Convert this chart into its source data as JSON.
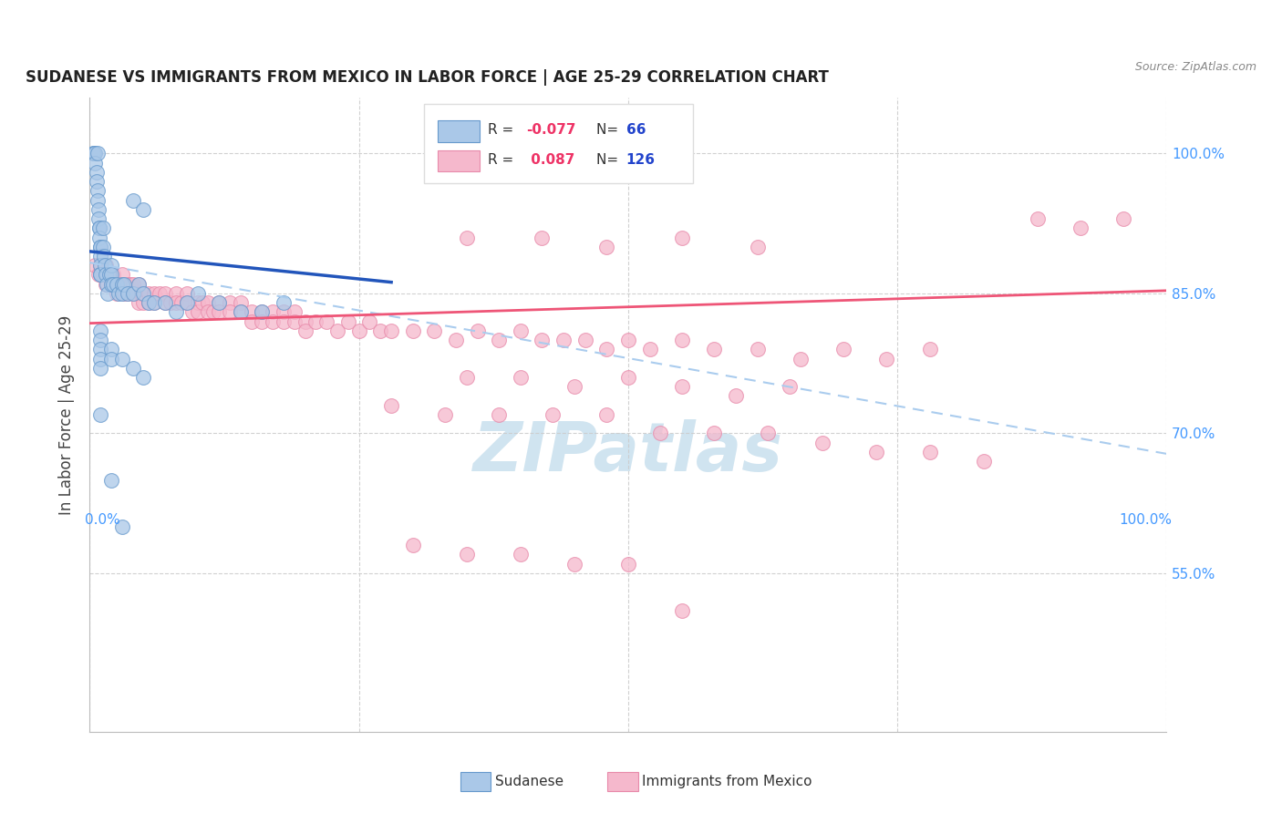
{
  "title": "SUDANESE VS IMMIGRANTS FROM MEXICO IN LABOR FORCE | AGE 25-29 CORRELATION CHART",
  "source": "Source: ZipAtlas.com",
  "ylabel": "In Labor Force | Age 25-29",
  "blue_R": -0.077,
  "blue_N": 66,
  "pink_R": 0.087,
  "pink_N": 126,
  "blue_label": "Sudanese",
  "pink_label": "Immigrants from Mexico",
  "xmin": 0.0,
  "xmax": 1.0,
  "ymin": 0.38,
  "ymax": 1.06,
  "yticks": [
    0.55,
    0.7,
    0.85,
    1.0
  ],
  "ytick_labels": [
    "55.0%",
    "70.0%",
    "85.0%",
    "100.0%"
  ],
  "background_color": "#ffffff",
  "grid_color": "#cccccc",
  "blue_scatter_color": "#aac8e8",
  "blue_scatter_edge": "#6699cc",
  "pink_scatter_color": "#f5b8cc",
  "pink_scatter_edge": "#e88aaa",
  "blue_line_color": "#2255bb",
  "pink_line_color": "#ee5577",
  "dashed_line_color": "#aaccee",
  "right_label_color": "#4499ff",
  "watermark_color": "#d0e4f0",
  "legend_R_color": "#ee3366",
  "legend_N_color": "#2244cc",
  "blue_x": [
    0.003,
    0.004,
    0.005,
    0.005,
    0.006,
    0.006,
    0.007,
    0.007,
    0.007,
    0.008,
    0.008,
    0.009,
    0.009,
    0.009,
    0.01,
    0.01,
    0.01,
    0.01,
    0.01,
    0.01,
    0.012,
    0.012,
    0.013,
    0.014,
    0.015,
    0.016,
    0.017,
    0.018,
    0.02,
    0.02,
    0.02,
    0.022,
    0.025,
    0.027,
    0.03,
    0.03,
    0.032,
    0.035,
    0.04,
    0.045,
    0.05,
    0.055,
    0.06,
    0.07,
    0.08,
    0.09,
    0.1,
    0.12,
    0.14,
    0.16,
    0.01,
    0.01,
    0.01,
    0.01,
    0.01,
    0.02,
    0.02,
    0.03,
    0.04,
    0.05,
    0.01,
    0.02,
    0.03,
    0.04,
    0.05,
    0.18
  ],
  "blue_y": [
    1.0,
    1.0,
    1.0,
    0.99,
    0.98,
    0.97,
    0.96,
    0.95,
    1.0,
    0.94,
    0.93,
    0.92,
    0.92,
    0.91,
    0.9,
    0.9,
    0.89,
    0.88,
    0.87,
    0.87,
    0.92,
    0.9,
    0.89,
    0.88,
    0.87,
    0.86,
    0.85,
    0.87,
    0.88,
    0.87,
    0.86,
    0.86,
    0.86,
    0.85,
    0.86,
    0.85,
    0.86,
    0.85,
    0.85,
    0.86,
    0.85,
    0.84,
    0.84,
    0.84,
    0.83,
    0.84,
    0.85,
    0.84,
    0.83,
    0.83,
    0.81,
    0.8,
    0.79,
    0.78,
    0.77,
    0.79,
    0.78,
    0.78,
    0.77,
    0.76,
    0.72,
    0.65,
    0.6,
    0.95,
    0.94,
    0.84
  ],
  "pink_x": [
    0.005,
    0.008,
    0.01,
    0.01,
    0.012,
    0.015,
    0.015,
    0.018,
    0.02,
    0.02,
    0.022,
    0.025,
    0.025,
    0.028,
    0.03,
    0.03,
    0.032,
    0.035,
    0.035,
    0.038,
    0.04,
    0.04,
    0.042,
    0.045,
    0.045,
    0.048,
    0.05,
    0.05,
    0.055,
    0.055,
    0.06,
    0.06,
    0.065,
    0.07,
    0.07,
    0.075,
    0.08,
    0.08,
    0.085,
    0.09,
    0.09,
    0.095,
    0.1,
    0.1,
    0.105,
    0.11,
    0.11,
    0.115,
    0.12,
    0.12,
    0.13,
    0.13,
    0.14,
    0.14,
    0.15,
    0.15,
    0.16,
    0.16,
    0.17,
    0.17,
    0.18,
    0.18,
    0.19,
    0.19,
    0.2,
    0.2,
    0.21,
    0.22,
    0.23,
    0.24,
    0.25,
    0.26,
    0.27,
    0.28,
    0.3,
    0.32,
    0.34,
    0.36,
    0.38,
    0.4,
    0.42,
    0.44,
    0.46,
    0.48,
    0.5,
    0.52,
    0.55,
    0.58,
    0.62,
    0.66,
    0.7,
    0.74,
    0.78,
    0.35,
    0.4,
    0.45,
    0.5,
    0.55,
    0.6,
    0.65,
    0.35,
    0.42,
    0.48,
    0.55,
    0.62,
    0.28,
    0.33,
    0.38,
    0.43,
    0.48,
    0.53,
    0.58,
    0.63,
    0.68,
    0.73,
    0.78,
    0.83,
    0.88,
    0.92,
    0.96,
    0.3,
    0.35,
    0.4,
    0.45,
    0.5,
    0.55
  ],
  "pink_y": [
    0.88,
    0.87,
    0.88,
    0.87,
    0.87,
    0.88,
    0.86,
    0.87,
    0.87,
    0.86,
    0.87,
    0.86,
    0.85,
    0.86,
    0.87,
    0.86,
    0.85,
    0.86,
    0.85,
    0.86,
    0.86,
    0.85,
    0.85,
    0.86,
    0.84,
    0.85,
    0.85,
    0.84,
    0.85,
    0.84,
    0.85,
    0.84,
    0.85,
    0.85,
    0.84,
    0.84,
    0.85,
    0.84,
    0.84,
    0.85,
    0.84,
    0.83,
    0.84,
    0.83,
    0.84,
    0.84,
    0.83,
    0.83,
    0.84,
    0.83,
    0.84,
    0.83,
    0.84,
    0.83,
    0.83,
    0.82,
    0.83,
    0.82,
    0.83,
    0.82,
    0.83,
    0.82,
    0.83,
    0.82,
    0.82,
    0.81,
    0.82,
    0.82,
    0.81,
    0.82,
    0.81,
    0.82,
    0.81,
    0.81,
    0.81,
    0.81,
    0.8,
    0.81,
    0.8,
    0.81,
    0.8,
    0.8,
    0.8,
    0.79,
    0.8,
    0.79,
    0.8,
    0.79,
    0.79,
    0.78,
    0.79,
    0.78,
    0.79,
    0.76,
    0.76,
    0.75,
    0.76,
    0.75,
    0.74,
    0.75,
    0.91,
    0.91,
    0.9,
    0.91,
    0.9,
    0.73,
    0.72,
    0.72,
    0.72,
    0.72,
    0.7,
    0.7,
    0.7,
    0.69,
    0.68,
    0.68,
    0.67,
    0.93,
    0.92,
    0.93,
    0.58,
    0.57,
    0.57,
    0.56,
    0.56,
    0.51
  ],
  "blue_line_x0": 0.0,
  "blue_line_x1": 0.28,
  "blue_line_y0": 0.895,
  "blue_line_y1": 0.862,
  "pink_line_x0": 0.0,
  "pink_line_x1": 1.0,
  "pink_line_y0": 0.818,
  "pink_line_y1": 0.853,
  "dash_line_x0": 0.0,
  "dash_line_x1": 1.0,
  "dash_line_y0": 0.883,
  "dash_line_y1": 0.678
}
